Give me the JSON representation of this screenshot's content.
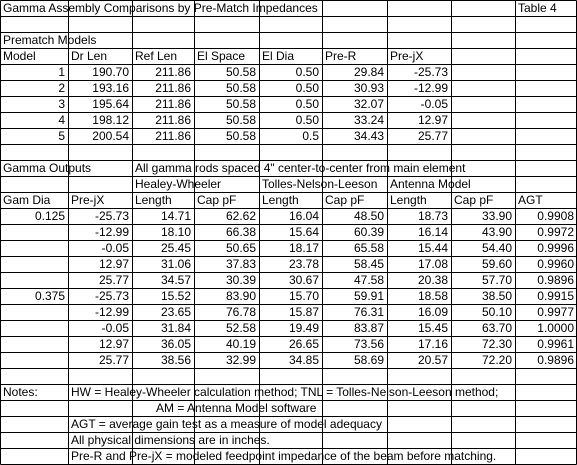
{
  "title": "Gamma Assembly Comparisons by Pre-Match Impedances",
  "table_label": "Table 4",
  "prematch": {
    "section": "Prematch Models",
    "headers": [
      "Model",
      "Dr Len",
      "Ref Len",
      "El Space",
      "El Dia",
      "Pre-R",
      "Pre-jX"
    ],
    "rows": [
      [
        "1",
        "190.70",
        "211.86",
        "50.58",
        "0.50",
        "29.84",
        "-25.73"
      ],
      [
        "2",
        "193.16",
        "211.86",
        "50.58",
        "0.50",
        "30.93",
        "-12.99"
      ],
      [
        "3",
        "195.64",
        "211.86",
        "50.58",
        "0.50",
        "32.07",
        "-0.05"
      ],
      [
        "4",
        "198.12",
        "211.86",
        "50.58",
        "0.50",
        "33.24",
        "12.97"
      ],
      [
        "5",
        "200.54",
        "211.86",
        "50.58",
        "0.5",
        "34.43",
        "25.77"
      ]
    ]
  },
  "gamma": {
    "section": "Gamma Outputs",
    "spacing_note": "All gamma rods spaced 4\" center-to-center from main element",
    "methods": [
      "Healey-Wheeler",
      "Tolles-Nelson-Leeson",
      "Antenna Model"
    ],
    "headers": [
      "Gam Dia",
      "Pre-jX",
      "Length",
      "Cap pF",
      "Length",
      "Cap pF",
      "Length",
      "Cap pF",
      "AGT"
    ],
    "rows": [
      [
        "0.125",
        "-25.73",
        "14.71",
        "62.62",
        "16.04",
        "48.50",
        "18.73",
        "33.90",
        "0.9908"
      ],
      [
        "",
        "-12.99",
        "18.10",
        "66.38",
        "15.64",
        "60.39",
        "16.14",
        "43.90",
        "0.9972"
      ],
      [
        "",
        "-0.05",
        "25.45",
        "50.65",
        "18.17",
        "65.58",
        "15.44",
        "54.40",
        "0.9996"
      ],
      [
        "",
        "12.97",
        "31.06",
        "37.83",
        "23.78",
        "58.45",
        "17.08",
        "59.60",
        "0.9960"
      ],
      [
        "",
        "25.77",
        "34.57",
        "30.39",
        "30.67",
        "47.58",
        "20.38",
        "57.70",
        "0.9896"
      ],
      [
        "0.375",
        "-25.73",
        "15.52",
        "83.90",
        "15.70",
        "59.91",
        "18.58",
        "38.50",
        "0.9915"
      ],
      [
        "",
        "-12.99",
        "23.65",
        "76.78",
        "15.87",
        "76.31",
        "16.09",
        "50.10",
        "0.9977"
      ],
      [
        "",
        "-0.05",
        "31.84",
        "52.58",
        "19.49",
        "83.87",
        "15.45",
        "63.70",
        "1.0000"
      ],
      [
        "",
        "12.97",
        "36.05",
        "40.19",
        "26.65",
        "73.56",
        "17.16",
        "72.30",
        "0.9961"
      ],
      [
        "",
        "25.77",
        "38.56",
        "32.99",
        "34.85",
        "58.69",
        "20.57",
        "72.20",
        "0.9896"
      ]
    ]
  },
  "notes": {
    "label": "Notes:",
    "lines": [
      "HW = Healey-Wheeler calculation method; TNL = Tolles-Nelson-Leeson method;",
      "AM = Antenna Model software",
      "AGT = average gain test as a measure of model adequacy",
      "All physical dimensions are in inches.",
      "Pre-R and Pre-jX = modeled feedpoint impedance of the beam before matching."
    ]
  }
}
